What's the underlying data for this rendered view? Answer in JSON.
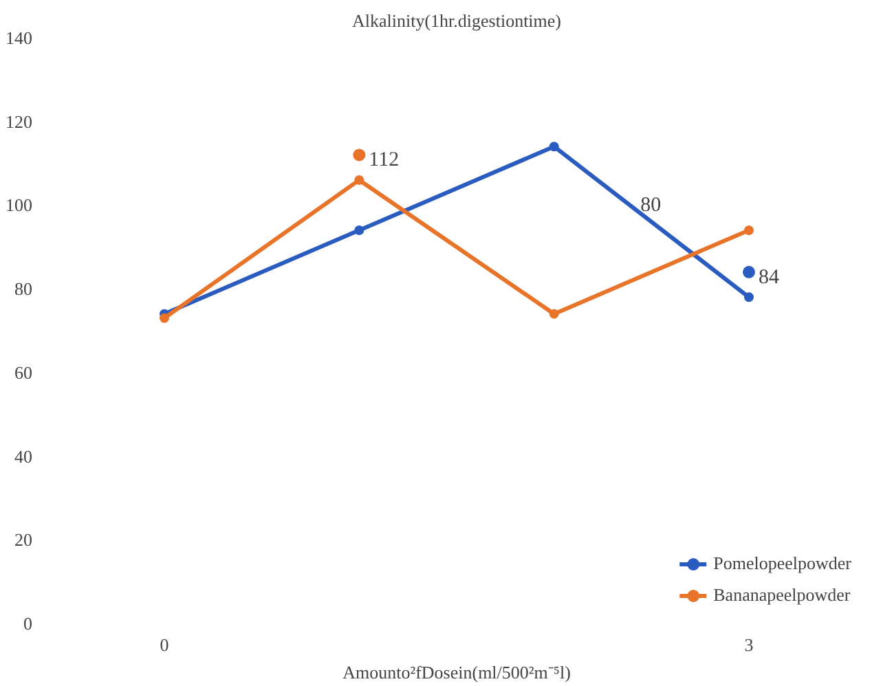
{
  "chart_data": {
    "type": "line",
    "title": "Alkalinity(1hr.digestiontime)",
    "xlabel": "Amounto²fDosein(ml/500²m⁻⁵l)",
    "categories": [
      "0",
      null,
      null,
      "3"
    ],
    "series": [
      {
        "name": "Pomelopeelpowder",
        "color": "#2a5cc0",
        "values": [
          74,
          94,
          114,
          78
        ]
      },
      {
        "name": "Bananapeelpowder",
        "color": "#e8742a",
        "values": [
          73,
          106,
          74,
          94
        ]
      },
      {
        "type": "scatter",
        "color": "#e8742a",
        "values": [
          null,
          112,
          null,
          null
        ],
        "value_labels": [
          null,
          "112",
          null,
          null
        ]
      },
      {
        "type": "scatter",
        "color": "#2a5cc0",
        "values": [
          null,
          null,
          null,
          84
        ],
        "value_labels": [
          null,
          null,
          null,
          "84"
        ]
      }
    ],
    "annotations": [
      "80"
    ],
    "ylim": [
      0,
      140
    ],
    "yticks": [
      0,
      20,
      40,
      60,
      80,
      100,
      120,
      140
    ],
    "grid": false,
    "legend": "bottom right",
    "marker": "circle",
    "line_style": "solid"
  }
}
